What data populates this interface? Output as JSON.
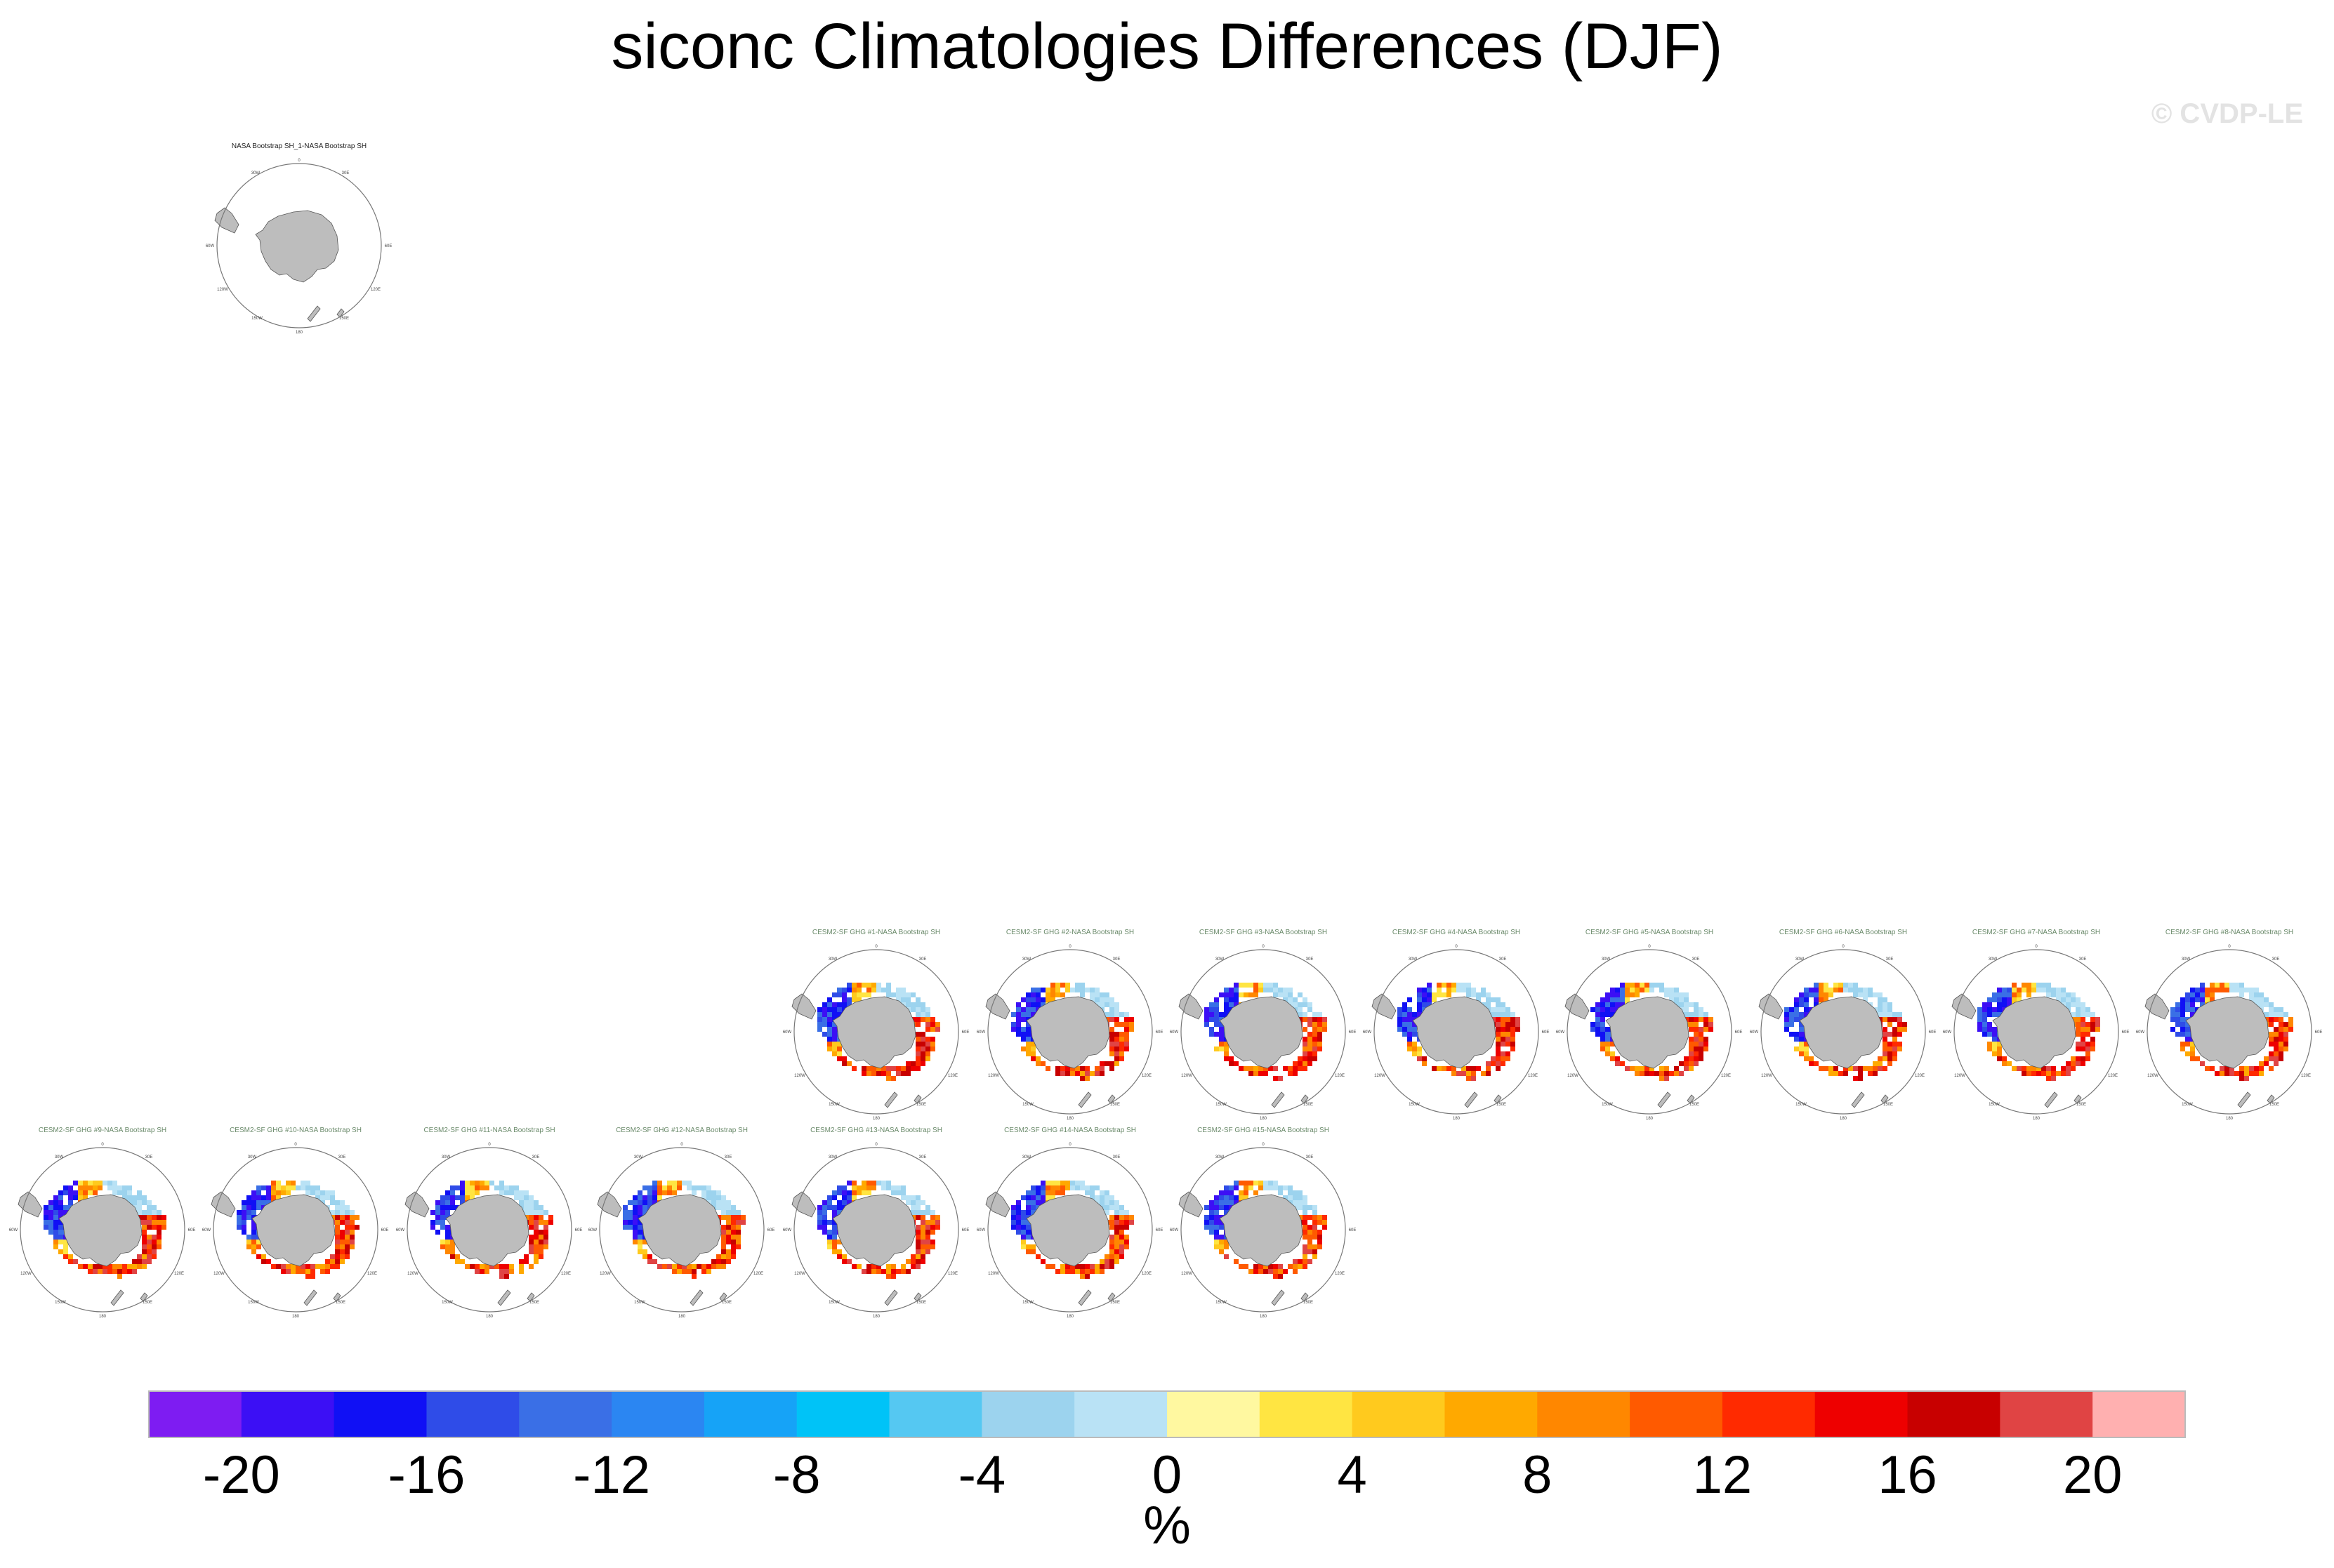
{
  "title": "siconc Climatologies Differences (DJF)",
  "credit": "© CVDP-LE",
  "colorbar": {
    "units": "%",
    "levels": [
      -22,
      -20,
      -18,
      -16,
      -14,
      -12,
      -10,
      -8,
      -6,
      -4,
      -2,
      0,
      2,
      4,
      6,
      8,
      10,
      12,
      14,
      16,
      18,
      20,
      22
    ],
    "colors": [
      "#7e1cf2",
      "#3c0ff5",
      "#1010f5",
      "#2f4ce8",
      "#3a6fe6",
      "#2b86f2",
      "#16a3f7",
      "#00c3f7",
      "#55c8f2",
      "#9cd3ee",
      "#b9e2f5",
      "#fff8a0",
      "#ffe542",
      "#ffca1e",
      "#ffa900",
      "#ff8700",
      "#ff5a00",
      "#ff2a00",
      "#ee0000",
      "#c80000",
      "#e04444",
      "#ffb0b0"
    ],
    "tick_labels": [
      "-20",
      "-16",
      "-12",
      "-8",
      "-4",
      "0",
      "4",
      "8",
      "12",
      "16",
      "20"
    ]
  },
  "chart_data": {
    "type": "heatmap",
    "title": "siconc Climatologies Differences (DJF)",
    "variable": "siconc",
    "season": "DJF",
    "units": "%",
    "color_range": [
      -22,
      22
    ],
    "panels": [
      {
        "title": "NASA Bootstrap SH_1-NASA Bootstrap SH",
        "kind": "observation"
      },
      {
        "title": "CESM2-SF GHG #1-NASA Bootstrap SH",
        "kind": "model"
      },
      {
        "title": "CESM2-SF GHG #2-NASA Bootstrap SH",
        "kind": "model"
      },
      {
        "title": "CESM2-SF GHG #3-NASA Bootstrap SH",
        "kind": "model"
      },
      {
        "title": "CESM2-SF GHG #4-NASA Bootstrap SH",
        "kind": "model"
      },
      {
        "title": "CESM2-SF GHG #5-NASA Bootstrap SH",
        "kind": "model"
      },
      {
        "title": "CESM2-SF GHG #6-NASA Bootstrap SH",
        "kind": "model"
      },
      {
        "title": "CESM2-SF GHG #7-NASA Bootstrap SH",
        "kind": "model"
      },
      {
        "title": "CESM2-SF GHG #8-NASA Bootstrap SH",
        "kind": "model"
      },
      {
        "title": "CESM2-SF GHG #9-NASA Bootstrap SH",
        "kind": "model"
      },
      {
        "title": "CESM2-SF GHG #10-NASA Bootstrap SH",
        "kind": "model"
      },
      {
        "title": "CESM2-SF GHG #11-NASA Bootstrap SH",
        "kind": "model"
      },
      {
        "title": "CESM2-SF GHG #12-NASA Bootstrap SH",
        "kind": "model"
      },
      {
        "title": "CESM2-SF GHG #13-NASA Bootstrap SH",
        "kind": "model"
      },
      {
        "title": "CESM2-SF GHG #14-NASA Bootstrap SH",
        "kind": "model"
      },
      {
        "title": "CESM2-SF GHG #15-NASA Bootstrap SH",
        "kind": "model"
      }
    ],
    "map_labels": {
      "top": "0",
      "upper_left": "30W",
      "upper_right": "30E",
      "left": "60W",
      "right": "60E",
      "lower_left": "120W",
      "lower_right": "120E",
      "bottom_left": "150W",
      "bottom_right": "150E",
      "bottom": "180"
    }
  }
}
